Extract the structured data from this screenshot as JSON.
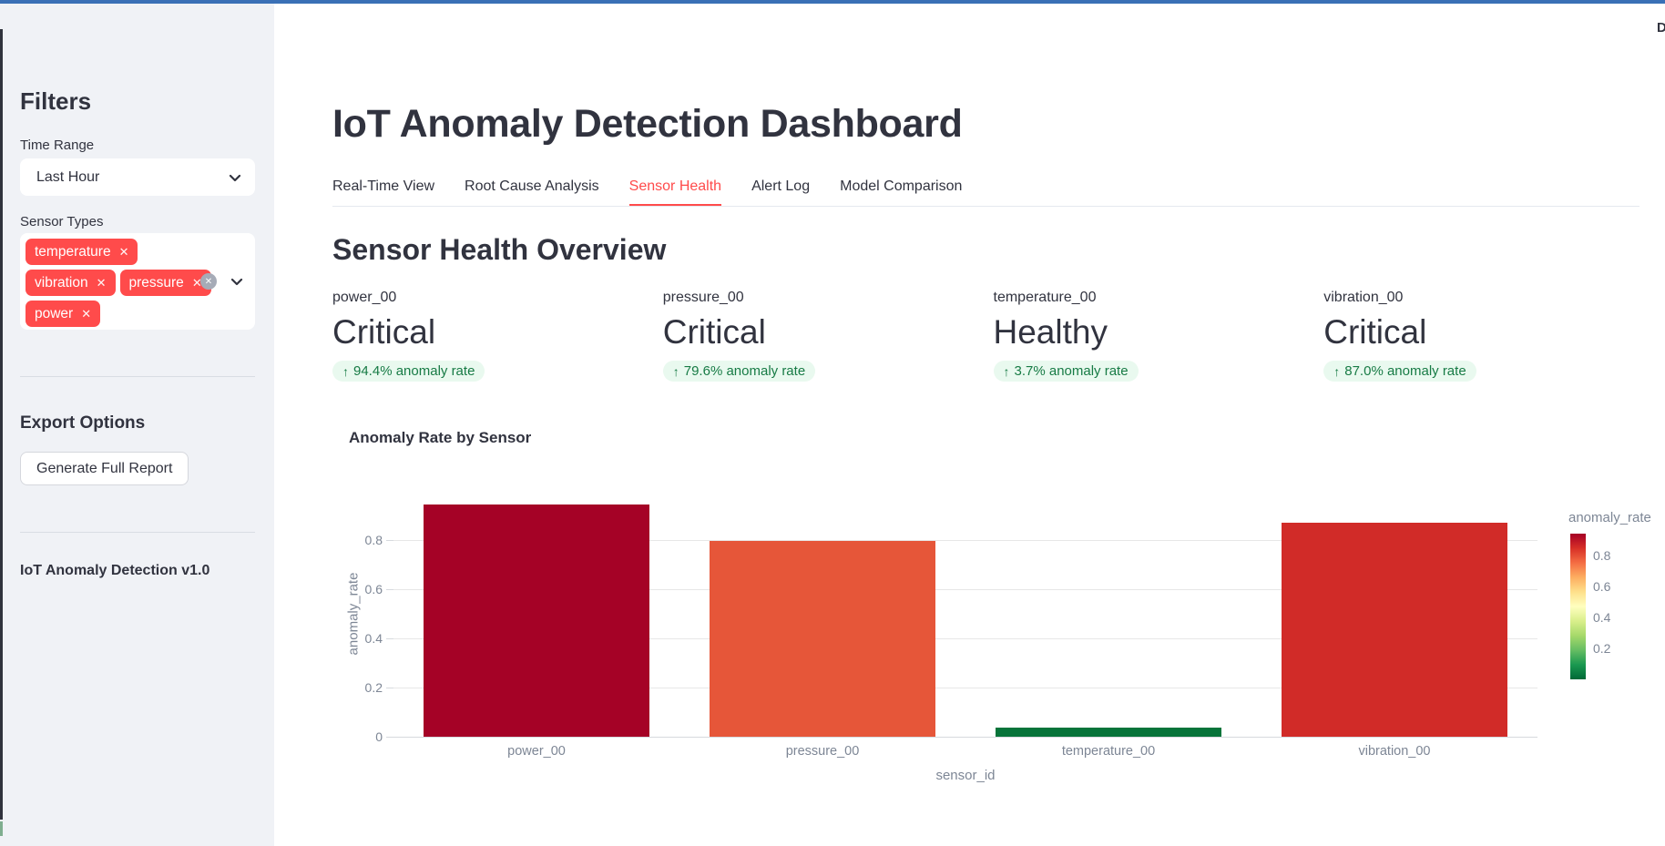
{
  "app": {
    "topbar_color": "#3a70b6",
    "deploy_clipped_text": "D"
  },
  "sidebar": {
    "filters_title": "Filters",
    "time_range": {
      "label": "Time Range",
      "value": "Last Hour"
    },
    "sensor_types": {
      "label": "Sensor Types",
      "tags": [
        "temperature",
        "vibration",
        "pressure",
        "power"
      ]
    },
    "export": {
      "heading": "Export Options",
      "button_label": "Generate Full Report"
    },
    "version_text": "IoT Anomaly Detection v1.0"
  },
  "header": {
    "title": "IoT Anomaly Detection Dashboard"
  },
  "tabs": [
    {
      "label": "Real-Time View",
      "active": false
    },
    {
      "label": "Root Cause Analysis",
      "active": false
    },
    {
      "label": "Sensor Health",
      "active": true
    },
    {
      "label": "Alert Log",
      "active": false
    },
    {
      "label": "Model Comparison",
      "active": false
    }
  ],
  "section_heading": "Sensor Health Overview",
  "metrics": [
    {
      "label": "power_00",
      "value": "Critical",
      "delta_arrow": "↑",
      "delta": "94.4% anomaly rate"
    },
    {
      "label": "pressure_00",
      "value": "Critical",
      "delta_arrow": "↑",
      "delta": "79.6% anomaly rate"
    },
    {
      "label": "temperature_00",
      "value": "Healthy",
      "delta_arrow": "↑",
      "delta": "3.7% anomaly rate"
    },
    {
      "label": "vibration_00",
      "value": "Critical",
      "delta_arrow": "↑",
      "delta": "87.0% anomaly rate"
    }
  ],
  "colors": {
    "accent_red": "#ff4b4b",
    "delta_text_green": "#177b45",
    "delta_bg_green": "#e9f9ef"
  },
  "icons": {
    "tag_remove": "✕",
    "clear_all": "✕",
    "chevron_down": "chevron-down",
    "delta_up": "↑"
  },
  "chart_data": {
    "type": "bar",
    "title": "Anomaly Rate by Sensor",
    "categories": [
      "power_00",
      "pressure_00",
      "temperature_00",
      "vibration_00"
    ],
    "values": [
      0.944,
      0.796,
      0.037,
      0.87
    ],
    "bar_colors": [
      "#a50226",
      "#e65639",
      "#07743a",
      "#d12b28"
    ],
    "xlabel": "sensor_id",
    "ylabel": "anomaly_rate",
    "ylim": [
      0,
      1.0
    ],
    "yticks": [
      0,
      0.2,
      0.4,
      0.6,
      0.8
    ],
    "grid": true,
    "legend": {
      "title": "anomaly_rate",
      "position": "right",
      "ticks": [
        0.8,
        0.6,
        0.4,
        0.2
      ],
      "domain": [
        0,
        0.944
      ],
      "colormap": "RdYlGn reversed (low=green, high=red)"
    }
  }
}
